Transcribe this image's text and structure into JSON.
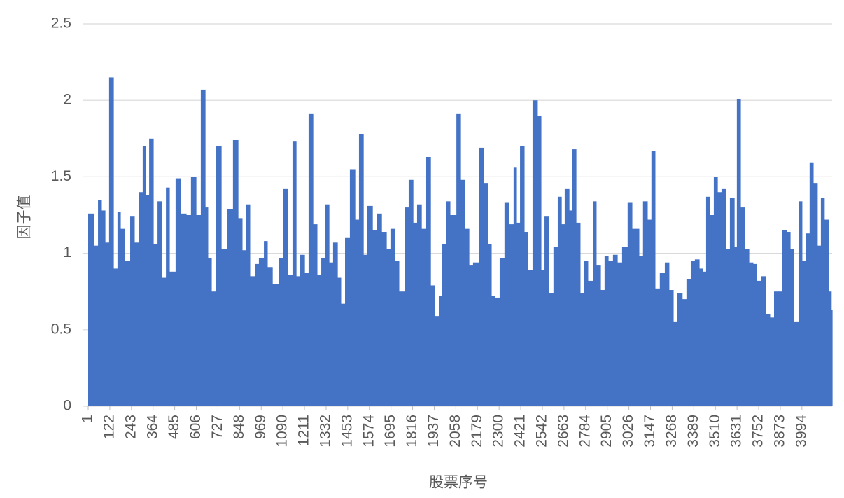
{
  "chart_data": {
    "type": "bar",
    "x_label": "股票序号",
    "y_label": "因子值",
    "x": [
      1,
      32,
      56,
      75,
      95,
      118,
      142,
      165,
      181,
      205,
      236,
      259,
      283,
      306,
      322,
      342,
      365,
      389,
      412,
      436,
      455,
      490,
      518,
      549,
      576,
      604,
      631,
      655,
      670,
      690,
      717,
      745,
      780,
      811,
      839,
      862,
      882,
      905,
      933,
      956,
      984,
      1003,
      1031,
      1066,
      1093,
      1117,
      1144,
      1164,
      1187,
      1211,
      1234,
      1258,
      1281,
      1305,
      1328,
      1348,
      1371,
      1395,
      1414,
      1438,
      1465,
      1493,
      1516,
      1540,
      1563,
      1591,
      1618,
      1642,
      1669,
      1692,
      1716,
      1739,
      1771,
      1794,
      1818,
      1841,
      1865,
      1892,
      1916,
      1939,
      1963,
      1982,
      2002,
      2025,
      2061,
      2084,
      2108,
      2131,
      2154,
      2189,
      2213,
      2236,
      2256,
      2276,
      2303,
      2330,
      2354,
      2381,
      2397,
      2417,
      2440,
      2460,
      2487,
      2514,
      2534,
      2554,
      2577,
      2604,
      2628,
      2648,
      2667,
      2691,
      2710,
      2730,
      2753,
      2773,
      2796,
      2824,
      2843,
      2867,
      2890,
      2910,
      2937,
      2961,
      2988,
      3019,
      3043,
      3066,
      3082,
      3105,
      3129,
      3152,
      3172,
      3199,
      3227,
      3250,
      3274,
      3297,
      3324,
      3348,
      3372,
      3395,
      3419,
      3438,
      3458,
      3478,
      3501,
      3521,
      3544,
      3568,
      3591,
      3615,
      3630,
      3650,
      3673,
      3697,
      3720,
      3740,
      3767,
      3791,
      3814,
      3838,
      3861,
      3885,
      3908,
      3928,
      3947,
      3975,
      3994,
      4018,
      4037,
      4057,
      4080,
      4100,
      4119,
      4143,
      4158
    ],
    "values": [
      1.26,
      1.05,
      1.35,
      1.28,
      1.07,
      2.15,
      0.9,
      1.27,
      1.16,
      0.95,
      1.24,
      1.07,
      1.4,
      1.7,
      1.38,
      1.75,
      1.06,
      1.34,
      0.84,
      1.43,
      0.88,
      1.49,
      1.26,
      1.25,
      1.5,
      1.25,
      2.07,
      1.3,
      0.97,
      0.75,
      1.7,
      1.03,
      1.29,
      1.74,
      1.23,
      1.02,
      1.32,
      0.85,
      0.93,
      0.97,
      1.08,
      0.91,
      0.8,
      0.97,
      1.42,
      0.86,
      1.73,
      0.85,
      0.99,
      0.87,
      1.91,
      1.19,
      0.86,
      0.97,
      1.32,
      0.94,
      1.07,
      0.84,
      0.67,
      1.1,
      1.55,
      1.22,
      1.78,
      0.99,
      1.31,
      1.15,
      1.26,
      1.14,
      1.03,
      1.16,
      0.95,
      0.75,
      1.3,
      1.48,
      1.2,
      1.32,
      1.16,
      1.63,
      0.79,
      0.59,
      0.72,
      1.06,
      1.34,
      1.25,
      1.91,
      1.48,
      1.16,
      0.92,
      0.94,
      1.69,
      1.46,
      1.06,
      0.72,
      0.71,
      0.97,
      1.33,
      1.19,
      1.56,
      1.2,
      1.7,
      1.14,
      0.89,
      2.0,
      1.9,
      0.89,
      1.24,
      0.74,
      1.04,
      1.37,
      1.19,
      1.42,
      1.28,
      1.68,
      1.2,
      0.74,
      0.95,
      0.82,
      1.34,
      0.92,
      0.76,
      0.98,
      0.95,
      0.99,
      0.94,
      1.04,
      1.33,
      1.16,
      1.16,
      0.98,
      1.34,
      1.22,
      1.67,
      0.77,
      0.87,
      0.94,
      0.76,
      0.55,
      0.74,
      0.7,
      0.83,
      0.95,
      0.96,
      0.9,
      0.88,
      1.37,
      1.25,
      1.5,
      1.4,
      1.42,
      1.03,
      1.36,
      1.04,
      2.01,
      1.3,
      1.03,
      0.94,
      0.93,
      0.82,
      0.85,
      0.6,
      0.58,
      0.75,
      0.75,
      1.15,
      1.14,
      1.03,
      0.55,
      1.34,
      0.95,
      1.13,
      1.59,
      1.46,
      1.05,
      1.36,
      1.22,
      0.75,
      0.63
    ],
    "color": "#4472c4",
    "xlim": [
      1,
      4163
    ],
    "xticks": [
      1,
      122,
      243,
      364,
      485,
      606,
      727,
      848,
      969,
      1090,
      1211,
      1332,
      1453,
      1574,
      1695,
      1816,
      1937,
      2058,
      2179,
      2300,
      2421,
      2542,
      2663,
      2784,
      2905,
      3026,
      3147,
      3268,
      3389,
      3510,
      3631,
      3752,
      3873,
      3994
    ],
    "ylim": [
      0,
      2.5
    ],
    "yticks": [
      0,
      0.5,
      1,
      1.5,
      2,
      2.5
    ],
    "grid": true
  }
}
